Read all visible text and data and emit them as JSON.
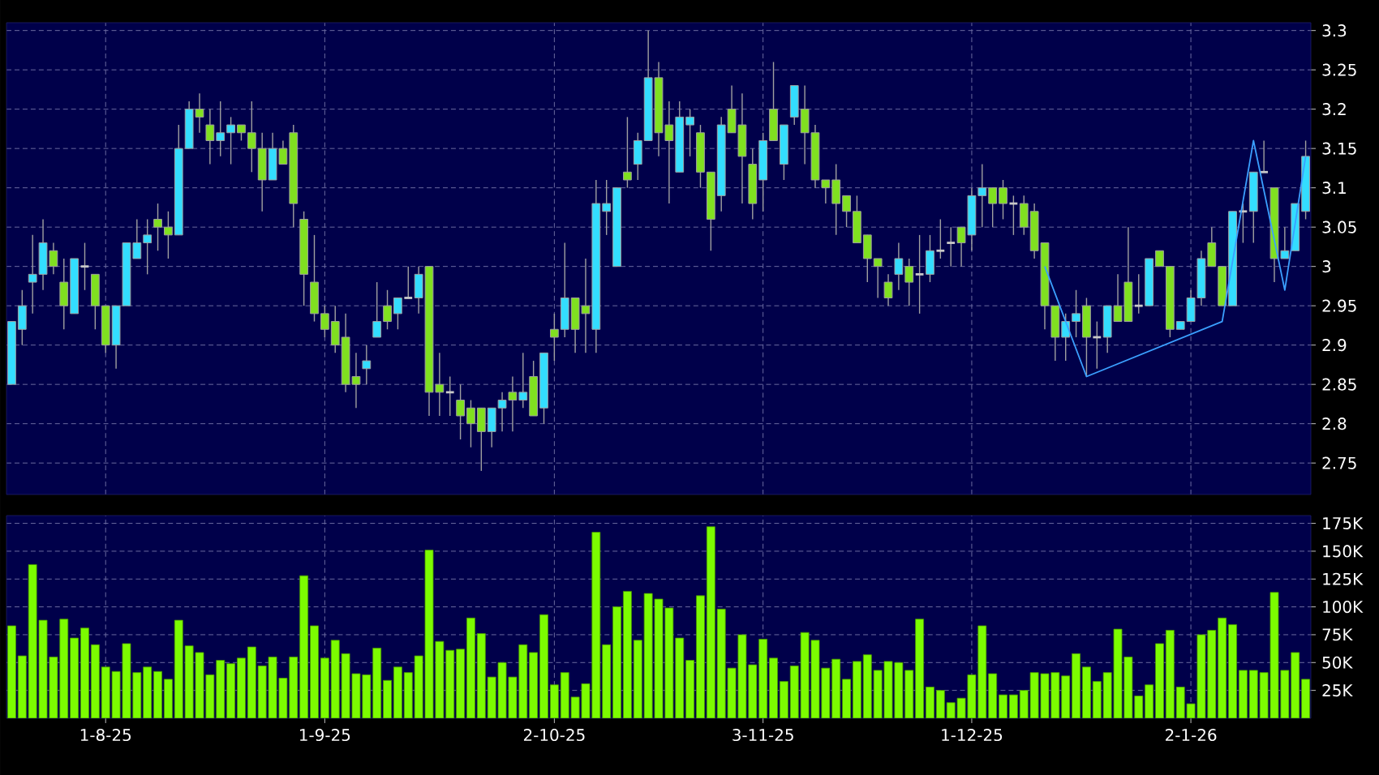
{
  "chart_data": [
    {
      "type": "candlestick",
      "tick_labels": "y",
      "grid": true,
      "categories": [
        null,
        null,
        null,
        null,
        null,
        null,
        null,
        null,
        null,
        null,
        null,
        null,
        null,
        null,
        null,
        null,
        null,
        null,
        null,
        null,
        null,
        null,
        null,
        null,
        null,
        null,
        null,
        null,
        null,
        null,
        null,
        null,
        null,
        null,
        null,
        null,
        null,
        null,
        null,
        null,
        null,
        null,
        null,
        null,
        null,
        null,
        null,
        null,
        null,
        null,
        null,
        null,
        null,
        null,
        null,
        null,
        null,
        null,
        null,
        null,
        null,
        null,
        null,
        null,
        null,
        null,
        null,
        null,
        null,
        null,
        null,
        null,
        null,
        null,
        null,
        null,
        null,
        null,
        null,
        null,
        null,
        null,
        null,
        null,
        null,
        null,
        null,
        null,
        null,
        null,
        null,
        null,
        null,
        null,
        null,
        null,
        null,
        null,
        null,
        null,
        null,
        null,
        null,
        null,
        null,
        null,
        null,
        null,
        null,
        null,
        null,
        null,
        null,
        null,
        null,
        null,
        null,
        null,
        null,
        null,
        null,
        null,
        null,
        null,
        null
      ],
      "ohlc": [
        [
          2.85,
          2.93,
          2.85,
          2.93
        ],
        [
          2.92,
          2.97,
          2.9,
          2.95
        ],
        [
          2.98,
          3.04,
          2.94,
          2.99
        ],
        [
          2.99,
          3.06,
          2.97,
          3.03
        ],
        [
          3.02,
          3.03,
          2.99,
          3.0
        ],
        [
          2.98,
          3.01,
          2.92,
          2.95
        ],
        [
          2.94,
          3.01,
          2.94,
          3.01
        ],
        [
          3.0,
          3.03,
          2.97,
          3.0
        ],
        [
          2.99,
          2.99,
          2.92,
          2.95
        ],
        [
          2.95,
          2.95,
          2.89,
          2.9
        ],
        [
          2.9,
          2.95,
          2.87,
          2.95
        ],
        [
          2.95,
          3.03,
          2.95,
          3.03
        ],
        [
          3.01,
          3.06,
          3.01,
          3.03
        ],
        [
          3.03,
          3.06,
          2.99,
          3.04
        ],
        [
          3.06,
          3.08,
          3.02,
          3.05
        ],
        [
          3.05,
          3.07,
          3.01,
          3.04
        ],
        [
          3.04,
          3.18,
          3.04,
          3.15
        ],
        [
          3.15,
          3.21,
          3.15,
          3.2
        ],
        [
          3.2,
          3.22,
          3.17,
          3.19
        ],
        [
          3.18,
          3.2,
          3.13,
          3.16
        ],
        [
          3.16,
          3.21,
          3.14,
          3.17
        ],
        [
          3.17,
          3.19,
          3.13,
          3.18
        ],
        [
          3.18,
          3.18,
          3.16,
          3.17
        ],
        [
          3.17,
          3.21,
          3.12,
          3.15
        ],
        [
          3.15,
          3.17,
          3.07,
          3.11
        ],
        [
          3.11,
          3.17,
          3.11,
          3.15
        ],
        [
          3.15,
          3.16,
          3.13,
          3.13
        ],
        [
          3.17,
          3.18,
          3.05,
          3.08
        ],
        [
          3.06,
          3.07,
          2.95,
          2.99
        ],
        [
          2.98,
          3.04,
          2.93,
          2.94
        ],
        [
          2.94,
          2.95,
          2.91,
          2.92
        ],
        [
          2.93,
          2.95,
          2.89,
          2.9
        ],
        [
          2.91,
          2.94,
          2.84,
          2.85
        ],
        [
          2.86,
          2.89,
          2.82,
          2.85
        ],
        [
          2.87,
          2.9,
          2.85,
          2.88
        ],
        [
          2.91,
          2.98,
          2.91,
          2.93
        ],
        [
          2.95,
          2.97,
          2.92,
          2.93
        ],
        [
          2.94,
          2.96,
          2.92,
          2.96
        ],
        [
          2.96,
          3.0,
          2.96,
          2.96
        ],
        [
          2.96,
          3.0,
          2.94,
          2.99
        ],
        [
          3.0,
          3.0,
          2.81,
          2.84
        ],
        [
          2.85,
          2.89,
          2.81,
          2.84
        ],
        [
          2.84,
          2.86,
          2.81,
          2.84
        ],
        [
          2.83,
          2.85,
          2.78,
          2.81
        ],
        [
          2.82,
          2.83,
          2.77,
          2.8
        ],
        [
          2.82,
          2.82,
          2.74,
          2.79
        ],
        [
          2.79,
          2.82,
          2.77,
          2.82
        ],
        [
          2.82,
          2.84,
          2.79,
          2.83
        ],
        [
          2.84,
          2.86,
          2.79,
          2.83
        ],
        [
          2.83,
          2.89,
          2.82,
          2.84
        ],
        [
          2.86,
          2.88,
          2.81,
          2.81
        ],
        [
          2.82,
          2.89,
          2.8,
          2.89
        ],
        [
          2.92,
          2.94,
          2.88,
          2.91
        ],
        [
          2.92,
          3.03,
          2.91,
          2.96
        ],
        [
          2.96,
          2.96,
          2.89,
          2.92
        ],
        [
          2.95,
          3.01,
          2.89,
          2.94
        ],
        [
          2.92,
          3.11,
          2.89,
          3.08
        ],
        [
          3.07,
          3.11,
          3.04,
          3.08
        ],
        [
          3.0,
          3.1,
          3.0,
          3.1
        ],
        [
          3.12,
          3.19,
          3.1,
          3.11
        ],
        [
          3.13,
          3.17,
          3.11,
          3.16
        ],
        [
          3.16,
          3.3,
          3.16,
          3.24
        ],
        [
          3.24,
          3.26,
          3.14,
          3.17
        ],
        [
          3.18,
          3.21,
          3.08,
          3.16
        ],
        [
          3.12,
          3.21,
          3.12,
          3.19
        ],
        [
          3.18,
          3.2,
          3.14,
          3.19
        ],
        [
          3.17,
          3.18,
          3.1,
          3.12
        ],
        [
          3.12,
          3.12,
          3.02,
          3.06
        ],
        [
          3.09,
          3.19,
          3.07,
          3.18
        ],
        [
          3.2,
          3.23,
          3.17,
          3.17
        ],
        [
          3.18,
          3.22,
          3.08,
          3.14
        ],
        [
          3.13,
          3.15,
          3.06,
          3.08
        ],
        [
          3.11,
          3.17,
          3.07,
          3.16
        ],
        [
          3.2,
          3.26,
          3.16,
          3.16
        ],
        [
          3.13,
          3.18,
          3.11,
          3.18
        ],
        [
          3.19,
          3.23,
          3.18,
          3.23
        ],
        [
          3.2,
          3.23,
          3.13,
          3.17
        ],
        [
          3.17,
          3.18,
          3.1,
          3.11
        ],
        [
          3.11,
          3.11,
          3.08,
          3.1
        ],
        [
          3.11,
          3.13,
          3.04,
          3.08
        ],
        [
          3.09,
          3.09,
          3.05,
          3.07
        ],
        [
          3.07,
          3.09,
          3.03,
          3.03
        ],
        [
          3.04,
          3.04,
          2.98,
          3.01
        ],
        [
          3.01,
          3.01,
          2.96,
          3.0
        ],
        [
          2.98,
          2.99,
          2.95,
          2.96
        ],
        [
          2.99,
          3.03,
          2.97,
          3.01
        ],
        [
          3.0,
          3.01,
          2.95,
          2.98
        ],
        [
          2.99,
          3.04,
          2.94,
          2.99
        ],
        [
          2.99,
          3.04,
          2.98,
          3.02
        ],
        [
          3.02,
          3.06,
          3.01,
          3.02
        ],
        [
          3.03,
          3.05,
          3.0,
          3.03
        ],
        [
          3.05,
          3.05,
          3.0,
          3.03
        ],
        [
          3.04,
          3.1,
          3.02,
          3.09
        ],
        [
          3.09,
          3.13,
          3.05,
          3.1
        ],
        [
          3.1,
          3.1,
          3.05,
          3.08
        ],
        [
          3.1,
          3.11,
          3.06,
          3.08
        ],
        [
          3.08,
          3.09,
          3.04,
          3.08
        ],
        [
          3.08,
          3.09,
          3.04,
          3.05
        ],
        [
          3.07,
          3.08,
          3.01,
          3.02
        ],
        [
          3.03,
          3.03,
          2.92,
          2.95
        ],
        [
          2.95,
          2.95,
          2.88,
          2.91
        ],
        [
          2.91,
          2.94,
          2.88,
          2.93
        ],
        [
          2.93,
          2.97,
          2.91,
          2.94
        ],
        [
          2.95,
          2.96,
          2.86,
          2.91
        ],
        [
          2.91,
          2.93,
          2.87,
          2.91
        ],
        [
          2.91,
          2.95,
          2.89,
          2.95
        ],
        [
          2.95,
          2.99,
          2.93,
          2.93
        ],
        [
          2.98,
          3.05,
          2.93,
          2.93
        ],
        [
          2.95,
          2.99,
          2.94,
          2.95
        ],
        [
          2.95,
          3.01,
          2.95,
          3.01
        ],
        [
          3.02,
          3.02,
          3.0,
          3.0
        ],
        [
          3.0,
          3.0,
          2.91,
          2.92
        ],
        [
          2.92,
          2.93,
          2.92,
          2.93
        ],
        [
          2.93,
          2.97,
          2.93,
          2.96
        ],
        [
          2.96,
          3.02,
          2.95,
          3.01
        ],
        [
          3.03,
          3.05,
          3.0,
          3.0
        ],
        [
          3.0,
          3.0,
          2.95,
          2.95
        ],
        [
          2.95,
          3.07,
          2.95,
          3.07
        ],
        [
          3.07,
          3.08,
          3.03,
          3.07
        ],
        [
          3.07,
          3.12,
          3.03,
          3.12
        ],
        [
          3.12,
          3.16,
          3.12,
          3.12
        ],
        [
          3.1,
          3.1,
          2.98,
          3.01
        ],
        [
          3.01,
          3.05,
          3.01,
          3.02
        ],
        [
          3.02,
          3.08,
          3.02,
          3.08
        ],
        [
          3.07,
          3.16,
          3.06,
          3.14
        ]
      ],
      "colors": [
        "#33ddff",
        "#33ddff",
        "#33ddff",
        "#33ddff",
        "#80e020",
        "#80e020",
        "#33ddff",
        "#c8c8c8",
        "#80e020",
        "#80e020",
        "#33ddff",
        "#33ddff",
        "#33ddff",
        "#33ddff",
        "#80e020",
        "#80e020",
        "#33ddff",
        "#33ddff",
        "#80e020",
        "#80e020",
        "#33ddff",
        "#33ddff",
        "#80e020",
        "#80e020",
        "#80e020",
        "#33ddff",
        "#80e020",
        "#80e020",
        "#80e020",
        "#80e020",
        "#80e020",
        "#80e020",
        "#80e020",
        "#80e020",
        "#33ddff",
        "#33ddff",
        "#80e020",
        "#33ddff",
        "#c8c8c8",
        "#33ddff",
        "#80e020",
        "#80e020",
        "#c8c8c8",
        "#80e020",
        "#80e020",
        "#80e020",
        "#33ddff",
        "#33ddff",
        "#80e020",
        "#33ddff",
        "#80e020",
        "#33ddff",
        "#80e020",
        "#33ddff",
        "#80e020",
        "#80e020",
        "#33ddff",
        "#33ddff",
        "#33ddff",
        "#80e020",
        "#33ddff",
        "#33ddff",
        "#80e020",
        "#80e020",
        "#33ddff",
        "#33ddff",
        "#80e020",
        "#80e020",
        "#33ddff",
        "#80e020",
        "#80e020",
        "#80e020",
        "#33ddff",
        "#80e020",
        "#33ddff",
        "#33ddff",
        "#80e020",
        "#80e020",
        "#80e020",
        "#80e020",
        "#80e020",
        "#80e020",
        "#80e020",
        "#80e020",
        "#80e020",
        "#33ddff",
        "#80e020",
        "#c8c8c8",
        "#33ddff",
        "#c8c8c8",
        "#c8c8c8",
        "#80e020",
        "#33ddff",
        "#33ddff",
        "#80e020",
        "#80e020",
        "#c8c8c8",
        "#80e020",
        "#80e020",
        "#80e020",
        "#80e020",
        "#33ddff",
        "#33ddff",
        "#80e020",
        "#c8c8c8",
        "#33ddff",
        "#80e020",
        "#80e020",
        "#c8c8c8",
        "#33ddff",
        "#80e020",
        "#80e020",
        "#33ddff",
        "#33ddff",
        "#33ddff",
        "#80e020",
        "#80e020",
        "#33ddff",
        "#c8c8c8",
        "#33ddff",
        "#c8c8c8",
        "#80e020",
        "#33ddff",
        "#33ddff",
        "#33ddff"
      ],
      "series": [
        {
          "type": "line",
          "color": "#3ba0ff",
          "values": [
            null,
            null,
            null,
            null,
            null,
            null,
            null,
            null,
            null,
            null,
            null,
            null,
            null,
            null,
            null,
            null,
            null,
            null,
            null,
            null,
            null,
            null,
            null,
            null,
            null,
            null,
            null,
            null,
            null,
            null,
            null,
            null,
            null,
            null,
            null,
            null,
            null,
            null,
            null,
            null,
            null,
            null,
            null,
            null,
            null,
            null,
            null,
            null,
            null,
            null,
            null,
            null,
            null,
            null,
            null,
            null,
            null,
            null,
            null,
            null,
            null,
            null,
            null,
            null,
            null,
            null,
            null,
            null,
            null,
            null,
            null,
            null,
            null,
            null,
            null,
            null,
            null,
            null,
            null,
            null,
            null,
            null,
            null,
            null,
            null,
            null,
            null,
            null,
            null,
            null,
            null,
            null,
            null,
            null,
            null,
            null,
            null,
            null,
            null,
            3,
            null,
            null,
            null,
            2.86,
            null,
            null,
            null,
            null,
            null,
            null,
            null,
            null,
            null,
            null,
            null,
            null,
            2.93,
            null,
            null,
            3.16,
            null,
            null,
            2.97,
            null,
            3.14
          ]
        }
      ],
      "ylim": [
        2.71,
        3.31
      ],
      "yticks": [
        2.75,
        2.8,
        2.85,
        2.9,
        2.95,
        3,
        3.05,
        3.1,
        3.15,
        3.2,
        3.25,
        3.3
      ]
    },
    {
      "type": "bar",
      "grid": true,
      "color": "#7cfc00",
      "categories": [
        null,
        null,
        null,
        null,
        null,
        null,
        null,
        null,
        null,
        "1-8-25",
        null,
        null,
        null,
        null,
        null,
        null,
        null,
        null,
        null,
        null,
        null,
        null,
        null,
        null,
        null,
        null,
        null,
        null,
        null,
        null,
        "1-9-25",
        null,
        null,
        null,
        null,
        null,
        null,
        null,
        null,
        null,
        null,
        null,
        null,
        null,
        null,
        null,
        null,
        null,
        null,
        null,
        null,
        null,
        "2-10-25",
        null,
        null,
        null,
        null,
        null,
        null,
        null,
        null,
        null,
        null,
        null,
        null,
        null,
        null,
        null,
        null,
        null,
        null,
        null,
        "3-11-25",
        null,
        null,
        null,
        null,
        null,
        null,
        null,
        null,
        null,
        null,
        null,
        null,
        null,
        null,
        null,
        null,
        null,
        null,
        null,
        "1-12-25",
        null,
        null,
        null,
        null,
        null,
        null,
        null,
        null,
        null,
        null,
        null,
        null,
        null,
        null,
        null,
        null,
        null,
        null,
        null,
        null,
        "2-1-26",
        null,
        null,
        null,
        null,
        null,
        null,
        null,
        null,
        null,
        null,
        null
      ],
      "values": [
        83000,
        56000,
        138000,
        88000,
        55000,
        89000,
        72000,
        81000,
        66000,
        46000,
        42000,
        67000,
        41000,
        46000,
        42000,
        35000,
        88000,
        65000,
        59000,
        39000,
        52000,
        49000,
        54000,
        64000,
        47000,
        55000,
        36000,
        55000,
        128000,
        83000,
        54000,
        70000,
        58000,
        40000,
        39000,
        63000,
        34000,
        46000,
        41000,
        56000,
        151000,
        69000,
        61000,
        62000,
        90000,
        76000,
        37000,
        50000,
        37000,
        66000,
        59000,
        93000,
        30000,
        41000,
        19000,
        31000,
        167000,
        66000,
        100000,
        114000,
        70000,
        112000,
        107000,
        99000,
        72000,
        52000,
        110000,
        172000,
        98000,
        45000,
        75000,
        48000,
        71000,
        54000,
        33000,
        47000,
        77000,
        70000,
        45000,
        53000,
        35000,
        51000,
        57000,
        43000,
        51000,
        50000,
        43000,
        89000,
        28000,
        25000,
        14000,
        18000,
        39000,
        83000,
        40000,
        21000,
        21000,
        25000,
        41000,
        40000,
        41000,
        38000,
        58000,
        46000,
        33000,
        41000,
        80000,
        55000,
        20000,
        30000,
        67000,
        79000,
        28000,
        13000,
        75000,
        79000,
        90000,
        84000,
        43000,
        43000,
        41000,
        113000,
        43000,
        59000,
        35000
      ],
      "ylim": [
        0,
        182000
      ],
      "yticks": [
        {
          "value": 25000,
          "label": "25K"
        },
        {
          "value": 50000,
          "label": "50K"
        },
        {
          "value": 75000,
          "label": "75K"
        },
        {
          "value": 100000,
          "label": "100K"
        },
        {
          "value": 125000,
          "label": "125K"
        },
        {
          "value": 150000,
          "label": "150K"
        },
        {
          "value": 175000,
          "label": "175K"
        }
      ]
    }
  ]
}
